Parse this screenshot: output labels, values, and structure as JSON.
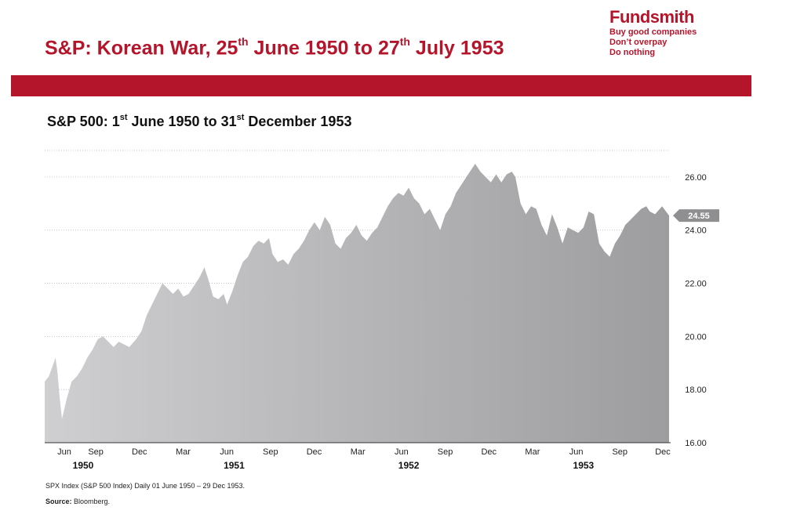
{
  "slide": {
    "title_pre": "S&P: Korean War, 25",
    "title_sup1": "th",
    "title_mid": " June 1950 to 27",
    "title_sup2": "th",
    "title_post": " July 1953"
  },
  "logo": {
    "name": "Fundsmith",
    "tagline": [
      "Buy good companies",
      "Don’t overpay",
      "Do nothing"
    ]
  },
  "colors": {
    "brand_red": "#b5152b",
    "area_light": "#cfcfd1",
    "area_dark": "#9d9d9f",
    "label_bg": "#8f8f91"
  },
  "chart_data": {
    "type": "area",
    "title_pre": "S&P 500: 1",
    "title_sup1": "st",
    "title_mid": " June 1950 to 31",
    "title_sup2": "st",
    "title_post": " December 1953",
    "x_start": "1950-06-01",
    "x_end": "1953-12-29",
    "ylim": [
      16,
      27
    ],
    "y_ticks": [
      "16.00",
      "18.00",
      "20.00",
      "22.00",
      "24.00",
      "26.00"
    ],
    "x_tick_labels": [
      "Jun",
      "Sep",
      "Dec",
      "Mar",
      "Jun",
      "Sep",
      "Dec",
      "Mar",
      "Jun",
      "Sep",
      "Dec",
      "Mar",
      "Jun",
      "Sep",
      "Dec"
    ],
    "year_labels": [
      "1950",
      "1951",
      "1952",
      "1953"
    ],
    "last_value_label": "24.55",
    "series": [
      {
        "name": "SPX Index",
        "points": [
          [
            1950.416,
            18.3
          ],
          [
            1950.44,
            18.5
          ],
          [
            1950.462,
            18.9
          ],
          [
            1950.478,
            19.2
          ],
          [
            1950.49,
            18.6
          ],
          [
            1950.5,
            17.8
          ],
          [
            1950.515,
            16.9
          ],
          [
            1950.54,
            17.6
          ],
          [
            1950.57,
            18.3
          ],
          [
            1950.6,
            18.5
          ],
          [
            1950.63,
            18.8
          ],
          [
            1950.66,
            19.2
          ],
          [
            1950.69,
            19.5
          ],
          [
            1950.72,
            19.9
          ],
          [
            1950.75,
            20.0
          ],
          [
            1950.78,
            19.8
          ],
          [
            1950.81,
            19.6
          ],
          [
            1950.84,
            19.8
          ],
          [
            1950.87,
            19.7
          ],
          [
            1950.9,
            19.6
          ],
          [
            1950.94,
            19.9
          ],
          [
            1950.97,
            20.2
          ],
          [
            1951.0,
            20.8
          ],
          [
            1951.03,
            21.2
          ],
          [
            1951.06,
            21.6
          ],
          [
            1951.09,
            22.0
          ],
          [
            1951.12,
            21.8
          ],
          [
            1951.15,
            21.6
          ],
          [
            1951.18,
            21.8
          ],
          [
            1951.21,
            21.5
          ],
          [
            1951.24,
            21.6
          ],
          [
            1951.27,
            21.9
          ],
          [
            1951.3,
            22.2
          ],
          [
            1951.33,
            22.6
          ],
          [
            1951.35,
            22.2
          ],
          [
            1951.38,
            21.5
          ],
          [
            1951.41,
            21.4
          ],
          [
            1951.44,
            21.6
          ],
          [
            1951.46,
            21.2
          ],
          [
            1951.49,
            21.7
          ],
          [
            1951.52,
            22.3
          ],
          [
            1951.55,
            22.8
          ],
          [
            1951.58,
            23.0
          ],
          [
            1951.61,
            23.4
          ],
          [
            1951.64,
            23.6
          ],
          [
            1951.67,
            23.5
          ],
          [
            1951.7,
            23.7
          ],
          [
            1951.72,
            23.1
          ],
          [
            1951.75,
            22.8
          ],
          [
            1951.78,
            22.9
          ],
          [
            1951.81,
            22.7
          ],
          [
            1951.84,
            23.1
          ],
          [
            1951.87,
            23.3
          ],
          [
            1951.9,
            23.6
          ],
          [
            1951.93,
            24.0
          ],
          [
            1951.96,
            24.3
          ],
          [
            1951.99,
            24.0
          ],
          [
            1952.02,
            24.5
          ],
          [
            1952.05,
            24.2
          ],
          [
            1952.08,
            23.5
          ],
          [
            1952.11,
            23.3
          ],
          [
            1952.14,
            23.7
          ],
          [
            1952.17,
            23.9
          ],
          [
            1952.2,
            24.2
          ],
          [
            1952.23,
            23.8
          ],
          [
            1952.26,
            23.6
          ],
          [
            1952.29,
            23.9
          ],
          [
            1952.32,
            24.1
          ],
          [
            1952.35,
            24.5
          ],
          [
            1952.38,
            24.9
          ],
          [
            1952.41,
            25.2
          ],
          [
            1952.44,
            25.4
          ],
          [
            1952.47,
            25.3
          ],
          [
            1952.5,
            25.6
          ],
          [
            1952.53,
            25.2
          ],
          [
            1952.56,
            25.0
          ],
          [
            1952.59,
            24.6
          ],
          [
            1952.62,
            24.8
          ],
          [
            1952.65,
            24.4
          ],
          [
            1952.68,
            24.0
          ],
          [
            1952.71,
            24.6
          ],
          [
            1952.74,
            24.9
          ],
          [
            1952.77,
            25.4
          ],
          [
            1952.8,
            25.7
          ],
          [
            1952.83,
            26.0
          ],
          [
            1952.86,
            26.3
          ],
          [
            1952.88,
            26.5
          ],
          [
            1952.91,
            26.2
          ],
          [
            1952.94,
            26.0
          ],
          [
            1952.97,
            25.8
          ],
          [
            1953.0,
            26.1
          ],
          [
            1953.03,
            25.8
          ],
          [
            1953.06,
            26.1
          ],
          [
            1953.09,
            26.2
          ],
          [
            1953.11,
            26.0
          ],
          [
            1953.14,
            25.0
          ],
          [
            1953.17,
            24.6
          ],
          [
            1953.2,
            24.9
          ],
          [
            1953.23,
            24.8
          ],
          [
            1953.26,
            24.2
          ],
          [
            1953.29,
            23.8
          ],
          [
            1953.32,
            24.6
          ],
          [
            1953.35,
            24.1
          ],
          [
            1953.38,
            23.5
          ],
          [
            1953.41,
            24.1
          ],
          [
            1953.44,
            24.0
          ],
          [
            1953.47,
            23.9
          ],
          [
            1953.5,
            24.1
          ],
          [
            1953.53,
            24.7
          ],
          [
            1953.56,
            24.6
          ],
          [
            1953.59,
            23.5
          ],
          [
            1953.62,
            23.2
          ],
          [
            1953.65,
            23.0
          ],
          [
            1953.68,
            23.5
          ],
          [
            1953.71,
            23.8
          ],
          [
            1953.74,
            24.2
          ],
          [
            1953.77,
            24.4
          ],
          [
            1953.8,
            24.6
          ],
          [
            1953.83,
            24.8
          ],
          [
            1953.86,
            24.9
          ],
          [
            1953.88,
            24.7
          ],
          [
            1953.91,
            24.6
          ],
          [
            1953.95,
            24.9
          ],
          [
            1953.99,
            24.55
          ]
        ]
      }
    ]
  },
  "footnote": "SPX Index (S&P 500 Index) Daily 01 June 1950 – 29 Dec 1953.",
  "source": {
    "label": "Source:",
    "text": " Bloomberg."
  }
}
